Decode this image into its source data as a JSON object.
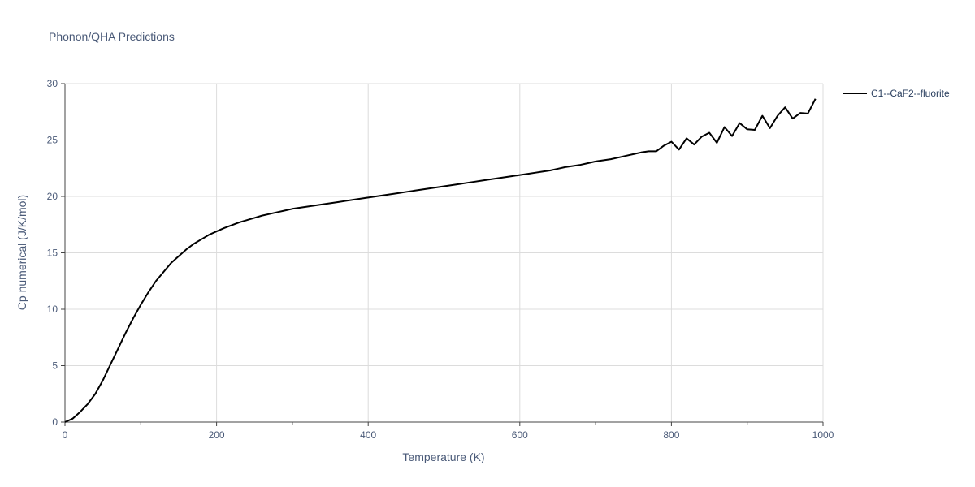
{
  "chart_data": {
    "type": "line",
    "title": "Phonon/QHA Predictions",
    "xlabel": "Temperature (K)",
    "ylabel": "Cp numerical (J/K/mol)",
    "xlim": [
      0,
      1000
    ],
    "ylim": [
      0,
      30
    ],
    "xticks": [
      0,
      200,
      400,
      600,
      800,
      1000
    ],
    "yticks": [
      0,
      5,
      10,
      15,
      20,
      25,
      30
    ],
    "grid": true,
    "legend_position": "top-right",
    "series": [
      {
        "name": "C1--CaF2--fluorite",
        "color": "#000000",
        "x": [
          0,
          10,
          20,
          30,
          40,
          50,
          60,
          70,
          80,
          90,
          100,
          110,
          120,
          130,
          140,
          150,
          160,
          170,
          180,
          190,
          200,
          210,
          220,
          230,
          240,
          250,
          260,
          270,
          280,
          290,
          300,
          310,
          320,
          330,
          340,
          350,
          360,
          370,
          380,
          390,
          400,
          410,
          420,
          430,
          440,
          450,
          460,
          470,
          480,
          490,
          500,
          510,
          520,
          530,
          540,
          550,
          560,
          570,
          580,
          590,
          600,
          610,
          620,
          630,
          640,
          650,
          660,
          670,
          680,
          690,
          700,
          710,
          720,
          730,
          740,
          750,
          760,
          770,
          780,
          790,
          800,
          810,
          820,
          830,
          840,
          850,
          860,
          870,
          880,
          890,
          900,
          910,
          920,
          930,
          940,
          950,
          960,
          970,
          980,
          990
        ],
        "y": [
          0,
          0.3,
          0.9,
          1.6,
          2.5,
          3.7,
          5.1,
          6.5,
          7.9,
          9.2,
          10.4,
          11.5,
          12.5,
          13.3,
          14.1,
          14.7,
          15.3,
          15.8,
          16.2,
          16.6,
          16.9,
          17.2,
          17.45,
          17.7,
          17.9,
          18.1,
          18.3,
          18.45,
          18.6,
          18.75,
          18.9,
          19.0,
          19.1,
          19.2,
          19.3,
          19.4,
          19.5,
          19.6,
          19.7,
          19.8,
          19.9,
          20.0,
          20.1,
          20.2,
          20.3,
          20.4,
          20.5,
          20.6,
          20.7,
          20.8,
          20.9,
          21.0,
          21.1,
          21.2,
          21.3,
          21.4,
          21.5,
          21.6,
          21.7,
          21.8,
          21.9,
          22.0,
          22.1,
          22.2,
          22.3,
          22.45,
          22.6,
          22.7,
          22.8,
          22.95,
          23.1,
          23.2,
          23.3,
          23.45,
          23.6,
          23.75,
          23.9,
          24.0,
          24.0,
          24.5,
          24.85,
          24.15,
          25.15,
          24.6,
          25.3,
          25.65,
          24.75,
          26.15,
          25.35,
          26.5,
          25.95,
          25.9,
          27.15,
          26.05,
          27.15,
          27.9,
          26.9,
          27.4,
          27.35,
          28.65
        ]
      }
    ]
  }
}
